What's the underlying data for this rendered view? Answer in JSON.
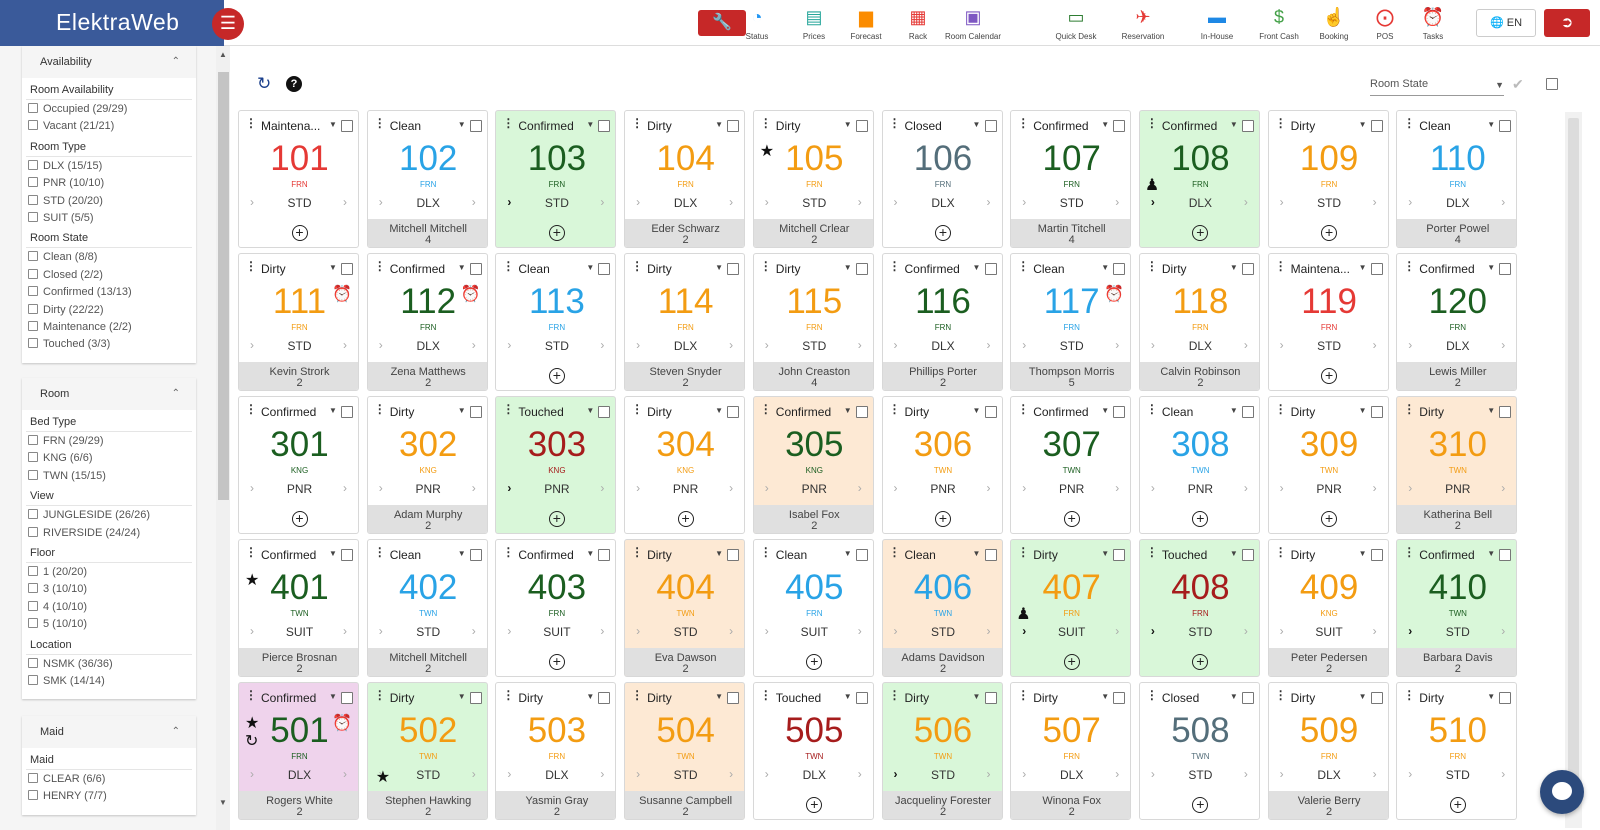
{
  "app": {
    "title": "ElektraWeb"
  },
  "nav": [
    {
      "label": "Status",
      "icon": "pie-chart-icon",
      "color": "#2196f3"
    },
    {
      "label": "Prices",
      "icon": "prices-icon",
      "color": "#26a69a"
    },
    {
      "label": "Forecast",
      "icon": "bar-chart-icon",
      "color": "#fb8c00"
    },
    {
      "label": "Rack",
      "icon": "grid-icon",
      "color": "#e53935"
    },
    {
      "label": "Room Calendar",
      "icon": "calendar-icon",
      "color": "#7e57c2"
    },
    {
      "label": "Quick Desk",
      "icon": "laptop-icon",
      "color": "#2e7d32"
    },
    {
      "label": "Reservation",
      "icon": "plane-icon",
      "color": "#e53935"
    },
    {
      "label": "In-House",
      "icon": "bed-icon",
      "color": "#1e88e5"
    },
    {
      "label": "Front Cash",
      "icon": "dollar-icon",
      "color": "#43a047"
    },
    {
      "label": "Booking",
      "icon": "hand-icon",
      "color": "#ec407a"
    },
    {
      "label": "POS",
      "icon": "cart-icon",
      "color": "#e53935"
    },
    {
      "label": "Tasks",
      "icon": "alarm-icon",
      "color": "#e53935"
    }
  ],
  "lang": "EN",
  "filters": {
    "availability": {
      "title": "Availability",
      "groups": [
        {
          "label": "Room Availability",
          "items": [
            "Occupied (29/29)",
            "Vacant (21/21)"
          ]
        },
        {
          "label": "Room Type",
          "items": [
            "DLX (15/15)",
            "PNR (10/10)",
            "STD (20/20)",
            "SUIT (5/5)"
          ]
        },
        {
          "label": "Room State",
          "items": [
            "Clean (8/8)",
            "Closed (2/2)",
            "Confirmed (13/13)",
            "Dirty (22/22)",
            "Maintenance (2/2)",
            "Touched (3/3)"
          ]
        }
      ]
    },
    "room": {
      "title": "Room",
      "groups": [
        {
          "label": "Bed Type",
          "items": [
            "FRN (29/29)",
            "KNG (6/6)",
            "TWN (15/15)"
          ]
        },
        {
          "label": "View",
          "items": [
            "JUNGLESIDE (26/26)",
            "RIVERSIDE (24/24)"
          ]
        },
        {
          "label": "Floor",
          "items": [
            "1 (20/20)",
            "3 (10/10)",
            "4 (10/10)",
            "5 (10/10)"
          ]
        },
        {
          "label": "Location",
          "items": [
            "NSMK (36/36)",
            "SMK (14/14)"
          ]
        }
      ]
    },
    "maid": {
      "title": "Maid",
      "groups": [
        {
          "label": "Maid",
          "items": [
            "CLEAR (6/6)",
            "HENRY (7/7)"
          ]
        }
      ]
    }
  },
  "toolbar": {
    "room_state_label": "Room State"
  },
  "colors": {
    "maintenance": "#e53935",
    "clean": "#29a3e6",
    "confirmed": "#1b5e20",
    "dirty": "#f39c12",
    "closed": "#546e7a",
    "touched": "#a61c1c",
    "bg_green": "#d9f7d9",
    "bg_orange": "#fde9d4",
    "bg_pink": "#efd3ec"
  },
  "rooms": [
    [
      {
        "state": "Maintena...",
        "num": "101",
        "bed": "FRN",
        "type": "STD",
        "guest": null,
        "count": null,
        "c": "maintenance",
        "bg": null
      },
      {
        "state": "Clean",
        "num": "102",
        "bed": "FRN",
        "type": "DLX",
        "guest": "Mitchell Mitchell",
        "count": "4",
        "c": "clean",
        "bg": null
      },
      {
        "state": "Confirmed",
        "num": "103",
        "bed": "FRN",
        "type": "STD",
        "guest": null,
        "count": null,
        "c": "confirmed",
        "bg": "bg_green",
        "left": true
      },
      {
        "state": "Dirty",
        "num": "104",
        "bed": "FRN",
        "type": "DLX",
        "guest": "Eder Schwarz",
        "count": "2",
        "c": "dirty",
        "bg": null
      },
      {
        "state": "Dirty",
        "num": "105",
        "bed": "FRN",
        "type": "STD",
        "guest": "Mitchell Crlear",
        "count": "2",
        "c": "dirty",
        "bg": null,
        "icons": [
          "star"
        ]
      },
      {
        "state": "Closed",
        "num": "106",
        "bed": "FRN",
        "type": "DLX",
        "guest": null,
        "count": null,
        "c": "closed",
        "bg": null
      },
      {
        "state": "Confirmed",
        "num": "107",
        "bed": "FRN",
        "type": "STD",
        "guest": "Martin Titchell",
        "count": "4",
        "c": "confirmed",
        "bg": null
      },
      {
        "state": "Confirmed",
        "num": "108",
        "bed": "FRN",
        "type": "DLX",
        "guest": null,
        "count": null,
        "c": "confirmed",
        "bg": "bg_green",
        "left": true,
        "icons": [
          "group"
        ]
      },
      {
        "state": "Dirty",
        "num": "109",
        "bed": "FRN",
        "type": "STD",
        "guest": null,
        "count": null,
        "c": "dirty",
        "bg": null
      },
      {
        "state": "Clean",
        "num": "110",
        "bed": "FRN",
        "type": "DLX",
        "guest": "Porter Powel",
        "count": "4",
        "c": "clean",
        "bg": null
      }
    ],
    [
      {
        "state": "Dirty",
        "num": "111",
        "bed": "FRN",
        "type": "STD",
        "guest": "Kevin Strork",
        "count": "2",
        "c": "dirty",
        "bg": null,
        "icons": [
          "alarm"
        ]
      },
      {
        "state": "Confirmed",
        "num": "112",
        "bed": "FRN",
        "type": "DLX",
        "guest": "Zena Matthews",
        "count": "2",
        "c": "confirmed",
        "bg": null,
        "icons": [
          "alarm"
        ]
      },
      {
        "state": "Clean",
        "num": "113",
        "bed": "FRN",
        "type": "STD",
        "guest": null,
        "count": null,
        "c": "clean",
        "bg": null
      },
      {
        "state": "Dirty",
        "num": "114",
        "bed": "FRN",
        "type": "DLX",
        "guest": "Steven Snyder",
        "count": "2",
        "c": "dirty",
        "bg": null
      },
      {
        "state": "Dirty",
        "num": "115",
        "bed": "FRN",
        "type": "STD",
        "guest": "John Creaston",
        "count": "4",
        "c": "dirty",
        "bg": null
      },
      {
        "state": "Confirmed",
        "num": "116",
        "bed": "FRN",
        "type": "DLX",
        "guest": "Phillips Porter",
        "count": "2",
        "c": "confirmed",
        "bg": null
      },
      {
        "state": "Clean",
        "num": "117",
        "bed": "FRN",
        "type": "STD",
        "guest": "Thompson Morris",
        "count": "5",
        "c": "clean",
        "bg": null,
        "icons": [
          "alarm"
        ]
      },
      {
        "state": "Dirty",
        "num": "118",
        "bed": "FRN",
        "type": "DLX",
        "guest": "Calvin Robinson",
        "count": "2",
        "c": "dirty",
        "bg": null
      },
      {
        "state": "Maintena...",
        "num": "119",
        "bed": "FRN",
        "type": "STD",
        "guest": null,
        "count": null,
        "c": "maintenance",
        "bg": null
      },
      {
        "state": "Confirmed",
        "num": "120",
        "bed": "FRN",
        "type": "DLX",
        "guest": "Lewis Miller",
        "count": "2",
        "c": "confirmed",
        "bg": null
      }
    ],
    [
      {
        "state": "Confirmed",
        "num": "301",
        "bed": "KNG",
        "type": "PNR",
        "guest": null,
        "count": null,
        "c": "confirmed",
        "bg": null
      },
      {
        "state": "Dirty",
        "num": "302",
        "bed": "KNG",
        "type": "PNR",
        "guest": "Adam Murphy",
        "count": "2",
        "c": "dirty",
        "bg": null
      },
      {
        "state": "Touched",
        "num": "303",
        "bed": "KNG",
        "type": "PNR",
        "guest": null,
        "count": null,
        "c": "touched",
        "bg": "bg_green",
        "left": true
      },
      {
        "state": "Dirty",
        "num": "304",
        "bed": "KNG",
        "type": "PNR",
        "guest": null,
        "count": null,
        "c": "dirty",
        "bg": null
      },
      {
        "state": "Confirmed",
        "num": "305",
        "bed": "KNG",
        "type": "PNR",
        "guest": "Isabel Fox",
        "count": "2",
        "c": "confirmed",
        "bg": "bg_orange"
      },
      {
        "state": "Dirty",
        "num": "306",
        "bed": "TWN",
        "type": "PNR",
        "guest": null,
        "count": null,
        "c": "dirty",
        "bg": null
      },
      {
        "state": "Confirmed",
        "num": "307",
        "bed": "TWN",
        "type": "PNR",
        "guest": null,
        "count": null,
        "c": "confirmed",
        "bg": null
      },
      {
        "state": "Clean",
        "num": "308",
        "bed": "TWN",
        "type": "PNR",
        "guest": null,
        "count": null,
        "c": "clean",
        "bg": null
      },
      {
        "state": "Dirty",
        "num": "309",
        "bed": "TWN",
        "type": "PNR",
        "guest": null,
        "count": null,
        "c": "dirty",
        "bg": null
      },
      {
        "state": "Dirty",
        "num": "310",
        "bed": "TWN",
        "type": "PNR",
        "guest": "Katherina Bell",
        "count": "2",
        "c": "dirty",
        "bg": "bg_orange"
      }
    ],
    [
      {
        "state": "Confirmed",
        "num": "401",
        "bed": "TWN",
        "type": "SUIT",
        "guest": "Pierce Brosnan",
        "count": "2",
        "c": "confirmed",
        "bg": null,
        "icons": [
          "star"
        ]
      },
      {
        "state": "Clean",
        "num": "402",
        "bed": "TWN",
        "type": "STD",
        "guest": "Mitchell Mitchell",
        "count": "2",
        "c": "clean",
        "bg": null
      },
      {
        "state": "Confirmed",
        "num": "403",
        "bed": "FRN",
        "type": "SUIT",
        "guest": null,
        "count": null,
        "c": "confirmed",
        "bg": null
      },
      {
        "state": "Dirty",
        "num": "404",
        "bed": "TWN",
        "type": "STD",
        "guest": "Eva Dawson",
        "count": "2",
        "c": "dirty",
        "bg": "bg_orange"
      },
      {
        "state": "Clean",
        "num": "405",
        "bed": "FRN",
        "type": "SUIT",
        "guest": null,
        "count": null,
        "c": "clean",
        "bg": null
      },
      {
        "state": "Clean",
        "num": "406",
        "bed": "TWN",
        "type": "STD",
        "guest": "Adams Davidson",
        "count": "2",
        "c": "clean",
        "bg": "bg_orange"
      },
      {
        "state": "Dirty",
        "num": "407",
        "bed": "FRN",
        "type": "SUIT",
        "guest": null,
        "count": null,
        "c": "dirty",
        "bg": "bg_green",
        "left": true,
        "icons": [
          "group"
        ]
      },
      {
        "state": "Touched",
        "num": "408",
        "bed": "FRN",
        "type": "STD",
        "guest": null,
        "count": null,
        "c": "touched",
        "bg": "bg_green",
        "left": true
      },
      {
        "state": "Dirty",
        "num": "409",
        "bed": "KNG",
        "type": "SUIT",
        "guest": "Peter Pedersen",
        "count": "2",
        "c": "dirty",
        "bg": null
      },
      {
        "state": "Confirmed",
        "num": "410",
        "bed": "TWN",
        "type": "STD",
        "guest": "Barbara Davis",
        "count": "2",
        "c": "confirmed",
        "bg": "bg_green",
        "left": true
      }
    ],
    [
      {
        "state": "Confirmed",
        "num": "501",
        "bed": "FRN",
        "type": "DLX",
        "guest": "Rogers White",
        "count": "2",
        "c": "confirmed",
        "bg": "bg_pink",
        "icons": [
          "star",
          "alarm",
          "history"
        ]
      },
      {
        "state": "Dirty",
        "num": "502",
        "bed": "TWN",
        "type": "STD",
        "guest": "Stephen Hawking",
        "count": "2",
        "c": "dirty",
        "bg": "bg_green",
        "icons": [
          "star-low"
        ]
      },
      {
        "state": "Dirty",
        "num": "503",
        "bed": "FRN",
        "type": "DLX",
        "guest": "Yasmin Gray",
        "count": "2",
        "c": "dirty",
        "bg": null
      },
      {
        "state": "Dirty",
        "num": "504",
        "bed": "TWN",
        "type": "STD",
        "guest": "Susanne Campbell",
        "count": "2",
        "c": "dirty",
        "bg": "bg_orange"
      },
      {
        "state": "Touched",
        "num": "505",
        "bed": "TWN",
        "type": "DLX",
        "guest": null,
        "count": null,
        "c": "touched",
        "bg": null
      },
      {
        "state": "Dirty",
        "num": "506",
        "bed": "TWN",
        "type": "STD",
        "guest": "Jacqueliny Forester",
        "count": "2",
        "c": "dirty",
        "bg": "bg_green",
        "left": true
      },
      {
        "state": "Dirty",
        "num": "507",
        "bed": "FRN",
        "type": "DLX",
        "guest": "Winona Fox",
        "count": "2",
        "c": "dirty",
        "bg": null
      },
      {
        "state": "Closed",
        "num": "508",
        "bed": "TWN",
        "type": "STD",
        "guest": null,
        "count": null,
        "c": "closed",
        "bg": null
      },
      {
        "state": "Dirty",
        "num": "509",
        "bed": "FRN",
        "type": "DLX",
        "guest": "Valerie Berry",
        "count": "2",
        "c": "dirty",
        "bg": null
      },
      {
        "state": "Dirty",
        "num": "510",
        "bed": "FRN",
        "type": "STD",
        "guest": null,
        "count": null,
        "c": "dirty",
        "bg": null
      }
    ]
  ]
}
